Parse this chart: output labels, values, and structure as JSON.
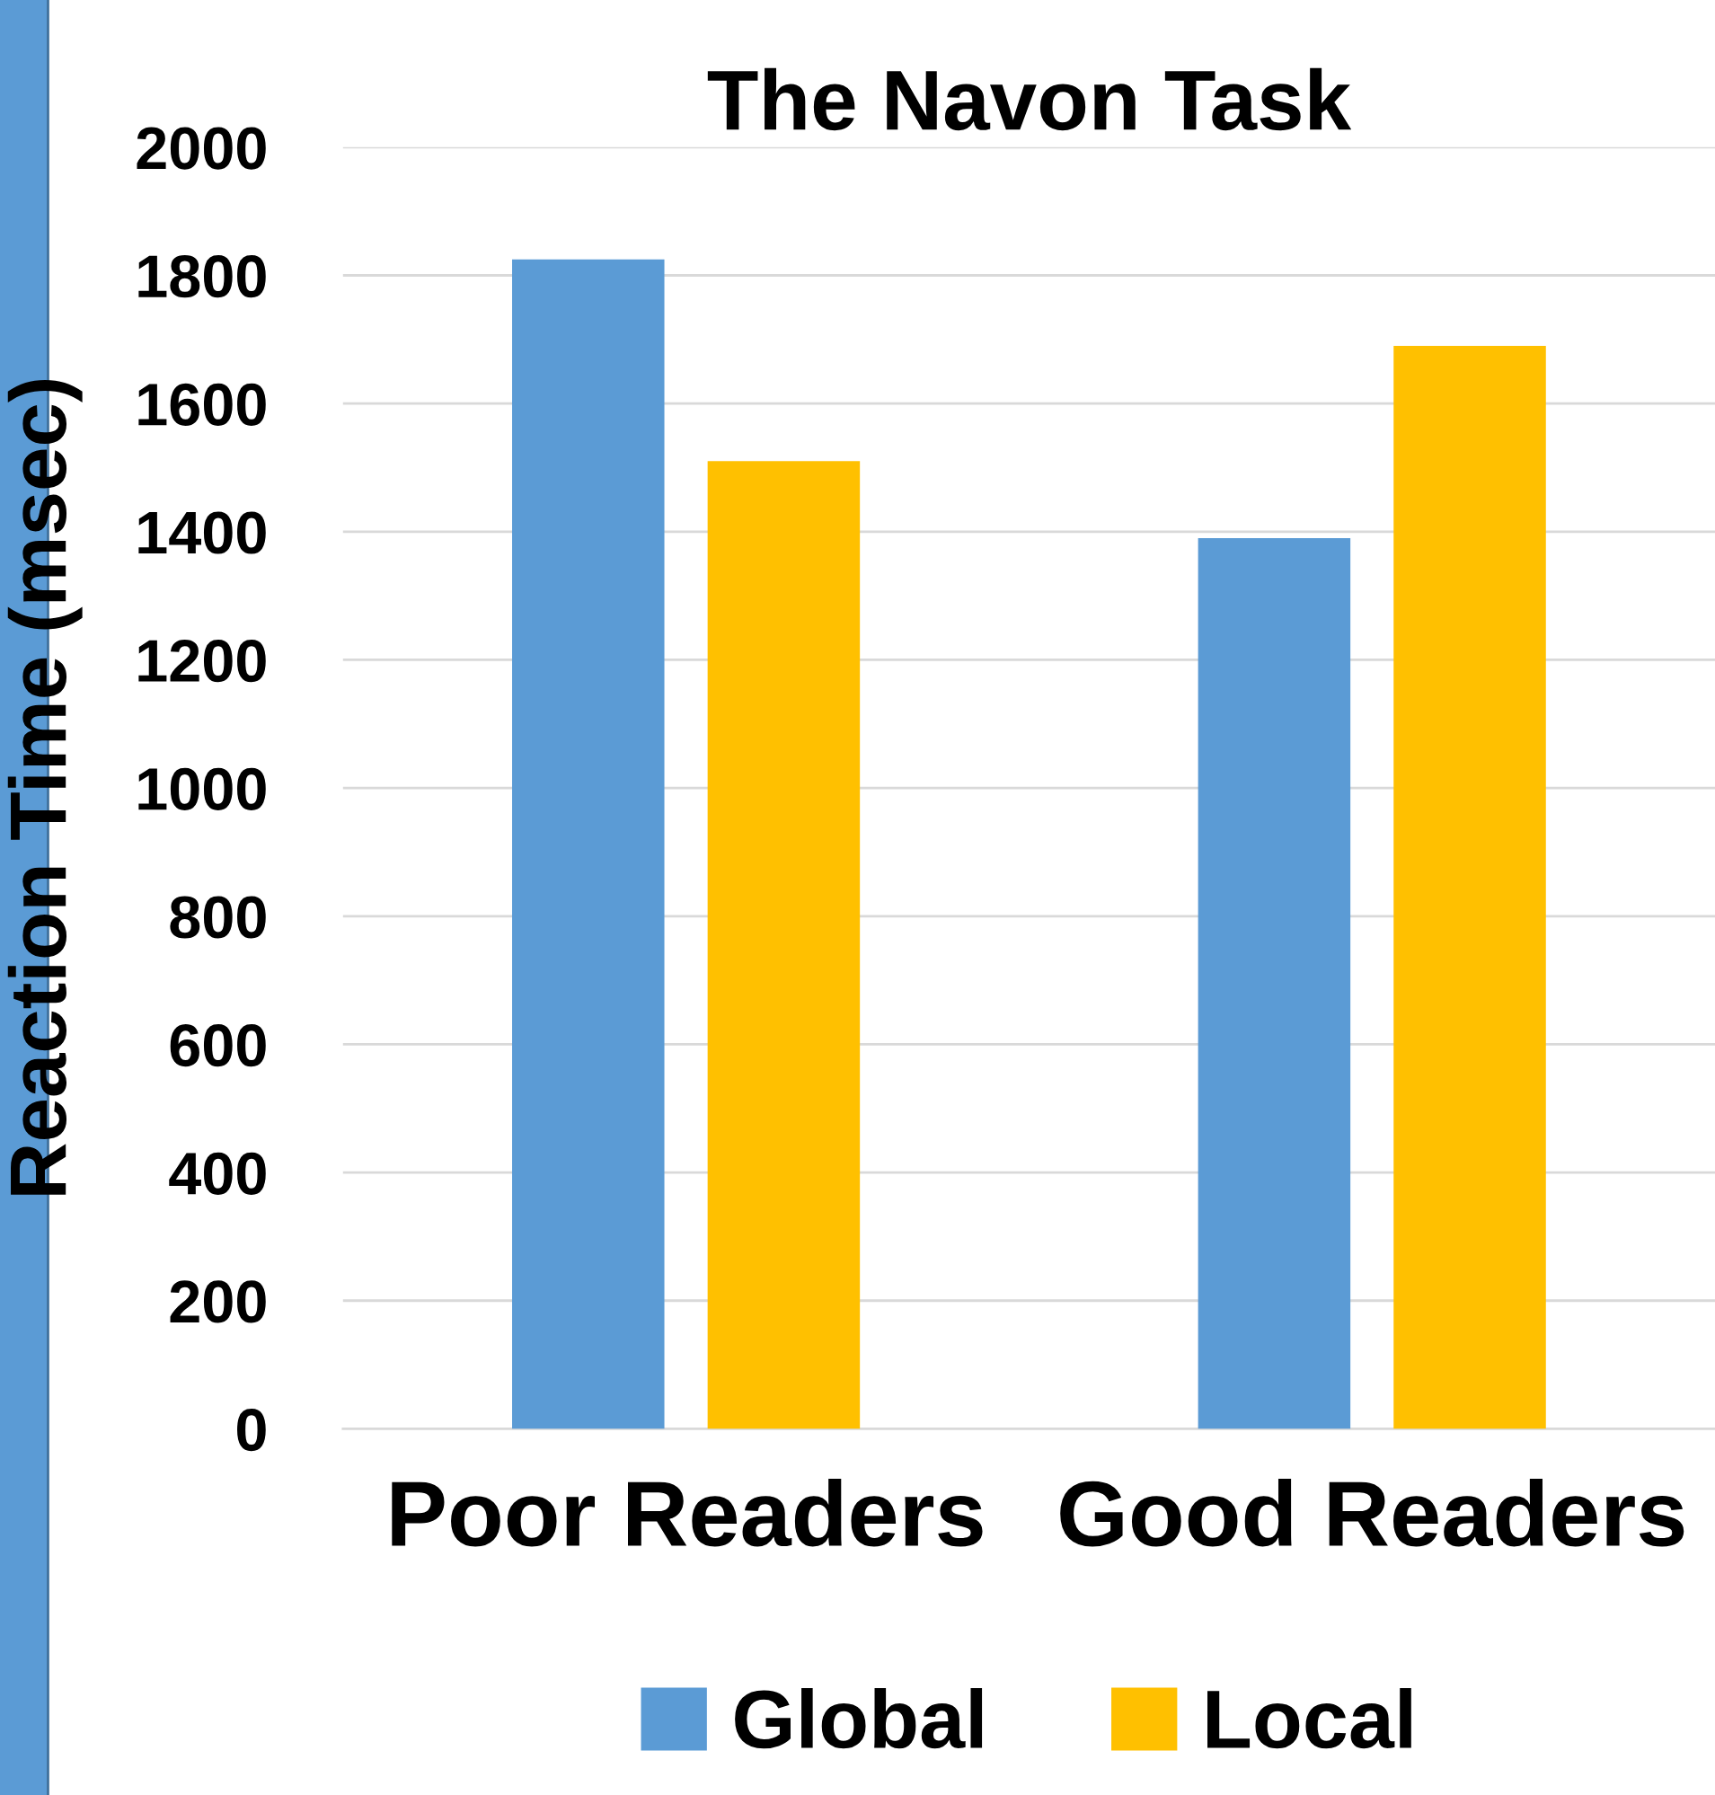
{
  "chart_data": {
    "type": "bar",
    "title": "The Navon Task",
    "ylabel": "Reaction Time (msec)",
    "categories": [
      "Poor Readers",
      "Good Readers"
    ],
    "series": [
      {
        "name": "Global",
        "color": "#5b9bd5",
        "values": [
          1825,
          1390
        ]
      },
      {
        "name": "Local",
        "color": "#ffc000",
        "values": [
          1510,
          1690
        ]
      }
    ],
    "ylim": [
      0,
      2000
    ],
    "yticks": [
      0,
      200,
      400,
      600,
      800,
      1000,
      1200,
      1400,
      1600,
      1800,
      2000
    ],
    "grid": "y",
    "legend": "bottom"
  }
}
